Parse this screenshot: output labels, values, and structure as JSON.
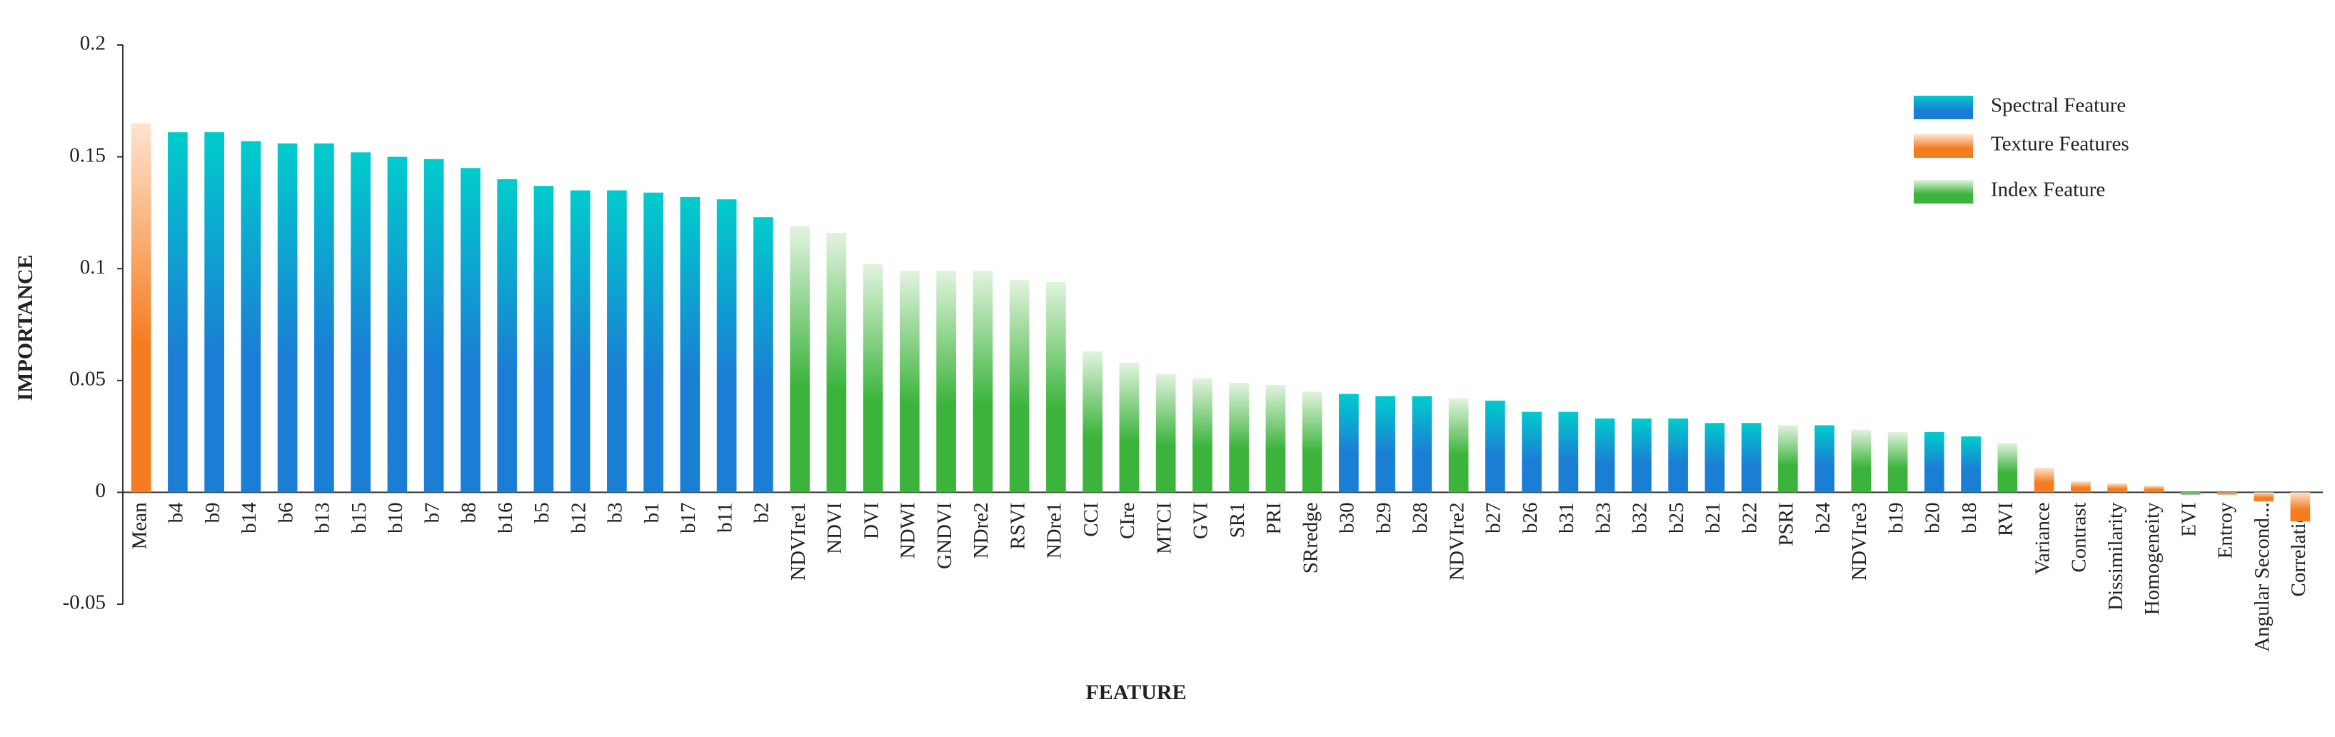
{
  "chart_data": {
    "type": "bar",
    "x_label": "FEATURE",
    "y_label": "IMPORTANCE",
    "categories": [
      "Mean",
      "b4",
      "b9",
      "b14",
      "b6",
      "b13",
      "b15",
      "b10",
      "b7",
      "b8",
      "b16",
      "b5",
      "b12",
      "b3",
      "b1",
      "b17",
      "b11",
      "b2",
      "NDVIre1",
      "NDVI",
      "DVI",
      "NDWI",
      "GNDVI",
      "NDre2",
      "RSVI",
      "NDre1",
      "CCI",
      "CIre",
      "MTCI",
      "GVI",
      "SR1",
      "PRI",
      "SRredge",
      "b30",
      "b29",
      "b28",
      "NDVIre2",
      "b27",
      "b26",
      "b31",
      "b23",
      "b32",
      "b25",
      "b21",
      "b22",
      "PSRI",
      "b24",
      "NDVIre3",
      "b19",
      "b20",
      "b18",
      "RVI",
      "Variance",
      "Contrast",
      "Dissimilarity",
      "Homogeneity",
      "EVI",
      "Entroy",
      "Angular Second...",
      "Correlation"
    ],
    "series": [
      {
        "name": "Spectral Feature",
        "color": "#1a7fd4",
        "top_color": "#00cccc",
        "values": [
          null,
          0.161,
          0.161,
          0.157,
          0.156,
          0.156,
          0.152,
          0.15,
          0.149,
          0.145,
          0.14,
          0.137,
          0.135,
          0.135,
          0.134,
          0.132,
          0.131,
          0.123,
          null,
          null,
          null,
          null,
          null,
          null,
          null,
          null,
          null,
          null,
          null,
          null,
          null,
          null,
          null,
          0.044,
          0.043,
          0.043,
          null,
          0.041,
          0.036,
          0.036,
          0.033,
          0.033,
          0.033,
          0.031,
          0.031,
          null,
          0.03,
          null,
          null,
          0.027,
          0.025,
          null,
          null,
          null,
          null,
          null,
          null,
          null,
          null,
          null
        ]
      },
      {
        "name": "Texture Features",
        "color": "#f57c1f",
        "top_color": "#fde4d0",
        "values": [
          0.165,
          null,
          null,
          null,
          null,
          null,
          null,
          null,
          null,
          null,
          null,
          null,
          null,
          null,
          null,
          null,
          null,
          null,
          null,
          null,
          null,
          null,
          null,
          null,
          null,
          null,
          null,
          null,
          null,
          null,
          null,
          null,
          null,
          null,
          null,
          null,
          null,
          null,
          null,
          null,
          null,
          null,
          null,
          null,
          null,
          null,
          null,
          null,
          null,
          null,
          null,
          null,
          0.011,
          0.005,
          0.004,
          0.003,
          null,
          -0.001,
          -0.004,
          -0.013
        ]
      },
      {
        "name": "Index Feature",
        "color": "#3cb43c",
        "top_color": "#e2f3df",
        "values": [
          null,
          null,
          null,
          null,
          null,
          null,
          null,
          null,
          null,
          null,
          null,
          null,
          null,
          null,
          null,
          null,
          null,
          null,
          0.119,
          0.116,
          0.102,
          0.099,
          0.099,
          0.099,
          0.095,
          0.094,
          0.063,
          0.058,
          0.053,
          0.051,
          0.049,
          0.048,
          0.045,
          null,
          null,
          null,
          0.042,
          null,
          null,
          null,
          null,
          null,
          null,
          null,
          null,
          0.03,
          null,
          0.028,
          0.027,
          null,
          null,
          0.022,
          null,
          null,
          null,
          null,
          -0.001,
          null,
          null,
          null
        ]
      }
    ],
    "ylim": [
      -0.05,
      0.2
    ],
    "yticks": [
      -0.05,
      0,
      0.05,
      0.1,
      0.15,
      0.2
    ],
    "grid": false,
    "legend": "upper right"
  }
}
